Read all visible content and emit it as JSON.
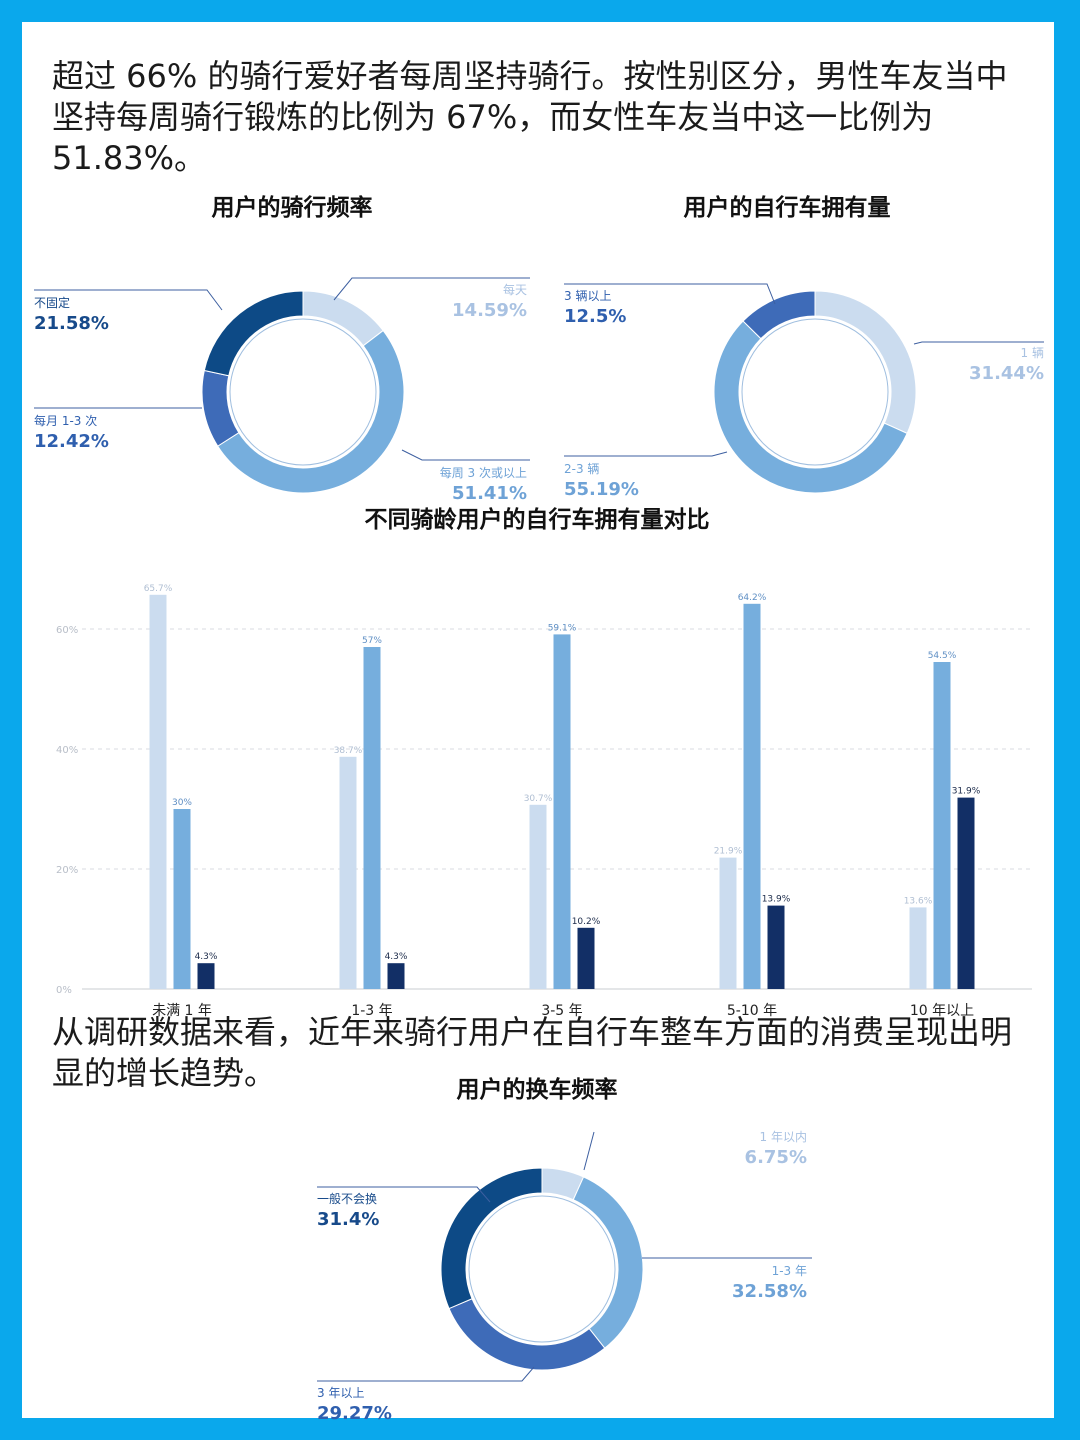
{
  "intro_text": "超过 66% 的骑行爱好者每周坚持骑行。按性别区分，男性车友当中坚持每周骑行锻炼的比例为 67%，而女性车友当中这一比例为 51.83%。",
  "mid_text": "从调研数据来看，近年来骑行用户在自行车整车方面的消费呈现出明显的增长趋势。",
  "colors": {
    "background": "#0aa8ec",
    "lightest": "#cbdcef",
    "light": "#76aedd",
    "medium": "#3e6bb8",
    "dark": "#0d4a86",
    "navy": "#122f66"
  },
  "chart_data": [
    {
      "type": "pie",
      "donut": true,
      "title": "用户的骑行频率",
      "slices": [
        {
          "label": "每天",
          "value": 14.59,
          "value_label": "14.59%",
          "color": "#cbdcef",
          "text_color": "#a9c2e2"
        },
        {
          "label": "每周 3 次或以上",
          "value": 51.41,
          "value_label": "51.41%",
          "color": "#76aedd",
          "text_color": "#6ea2d6"
        },
        {
          "label": "每月 1-3 次",
          "value": 12.42,
          "value_label": "12.42%",
          "color": "#3e6bb8",
          "text_color": "#2f5fae"
        },
        {
          "label": "不固定",
          "value": 21.58,
          "value_label": "21.58%",
          "color": "#0d4a86",
          "text_color": "#174a8a"
        }
      ]
    },
    {
      "type": "pie",
      "donut": true,
      "title": "用户的自行车拥有量",
      "slices": [
        {
          "label": "1 辆",
          "value": 31.44,
          "value_label": "31.44%",
          "color": "#cbdcef",
          "text_color": "#a9c2e2"
        },
        {
          "label": "2-3 辆",
          "value": 55.19,
          "value_label": "55.19%",
          "color": "#76aedd",
          "text_color": "#6ea2d6"
        },
        {
          "label": "3 辆以上",
          "value": 12.5,
          "value_label": "12.5%",
          "color": "#3e6bb8",
          "text_color": "#2f5fae"
        }
      ]
    },
    {
      "type": "bar",
      "title": "不同骑龄用户的自行车拥有量对比",
      "categories": [
        "未满 1 年",
        "1-3 年",
        "3-5 年",
        "5-10 年",
        "10 年以上"
      ],
      "ylim": [
        0,
        70
      ],
      "yticks": [
        0,
        20,
        40,
        60
      ],
      "ytick_labels": [
        "0%",
        "20%",
        "40%",
        "60%"
      ],
      "grid": true,
      "series": [
        {
          "values": [
            65.7,
            38.7,
            30.7,
            21.9,
            13.6
          ],
          "labels": [
            "65.7%",
            "38.7%",
            "30.7%",
            "21.9%",
            "13.6%"
          ],
          "color": "#cbdcef",
          "label_color": "#b0bfd3"
        },
        {
          "values": [
            30,
            57,
            59.1,
            64.2,
            54.5
          ],
          "labels": [
            "30%",
            "57%",
            "59.1%",
            "64.2%",
            "54.5%"
          ],
          "color": "#76aedd",
          "label_color": "#5f8fc4"
        },
        {
          "values": [
            4.3,
            4.3,
            10.2,
            13.9,
            31.9
          ],
          "labels": [
            "4.3%",
            "4.3%",
            "10.2%",
            "13.9%",
            "31.9%"
          ],
          "color": "#122f66",
          "label_color": "#1c2b4a"
        }
      ]
    },
    {
      "type": "pie",
      "donut": true,
      "title": "用户的换车频率",
      "slices": [
        {
          "label": "1 年以内",
          "value": 6.75,
          "value_label": "6.75%",
          "color": "#cbdcef",
          "text_color": "#a9c2e2"
        },
        {
          "label": "1-3 年",
          "value": 32.58,
          "value_label": "32.58%",
          "color": "#76aedd",
          "text_color": "#6ea2d6"
        },
        {
          "label": "3 年以上",
          "value": 29.27,
          "value_label": "29.27%",
          "color": "#3e6bb8",
          "text_color": "#2f5fae"
        },
        {
          "label": "一般不会换",
          "value": 31.4,
          "value_label": "31.4%",
          "color": "#0d4a86",
          "text_color": "#174a8a"
        }
      ]
    }
  ]
}
